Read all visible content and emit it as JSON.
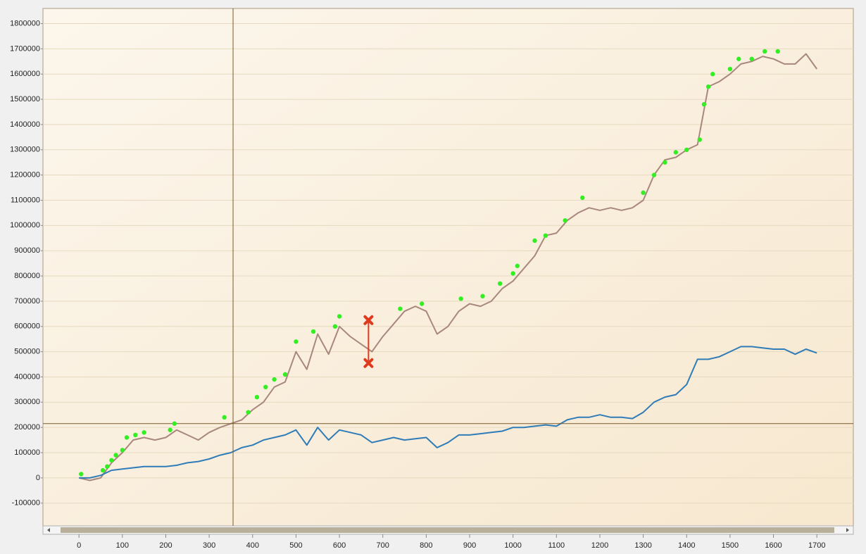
{
  "chart_data": {
    "type": "line",
    "x": [
      0,
      25,
      50,
      75,
      100,
      125,
      150,
      175,
      200,
      225,
      250,
      275,
      300,
      325,
      350,
      375,
      400,
      425,
      450,
      475,
      500,
      525,
      550,
      575,
      600,
      625,
      650,
      675,
      700,
      725,
      750,
      775,
      800,
      825,
      850,
      875,
      900,
      925,
      950,
      975,
      1000,
      1025,
      1050,
      1075,
      1100,
      1125,
      1150,
      1175,
      1200,
      1225,
      1250,
      1275,
      1300,
      1325,
      1350,
      1375,
      1400,
      1425,
      1450,
      1475,
      1500,
      1525,
      1550,
      1575,
      1600,
      1625,
      1650,
      1675,
      1700
    ],
    "series": [
      {
        "color": "#a8877c",
        "values": [
          0,
          -10000,
          0,
          60000,
          100000,
          150000,
          160000,
          150000,
          160000,
          190000,
          170000,
          150000,
          180000,
          200000,
          215000,
          230000,
          270000,
          300000,
          360000,
          380000,
          500000,
          430000,
          570000,
          490000,
          600000,
          560000,
          530000,
          500000,
          560000,
          610000,
          660000,
          680000,
          660000,
          570000,
          600000,
          660000,
          690000,
          680000,
          700000,
          750000,
          780000,
          830000,
          880000,
          960000,
          970000,
          1020000,
          1050000,
          1070000,
          1060000,
          1070000,
          1060000,
          1070000,
          1100000,
          1200000,
          1260000,
          1270000,
          1300000,
          1320000,
          1550000,
          1570000,
          1600000,
          1640000,
          1650000,
          1670000,
          1660000,
          1640000,
          1640000,
          1680000,
          1620000
        ]
      },
      {
        "color": "#2f7cb8",
        "values": [
          0,
          0,
          10000,
          30000,
          35000,
          40000,
          45000,
          45000,
          45000,
          50000,
          60000,
          65000,
          75000,
          90000,
          100000,
          120000,
          130000,
          150000,
          160000,
          170000,
          190000,
          130000,
          200000,
          150000,
          190000,
          180000,
          170000,
          140000,
          150000,
          160000,
          150000,
          155000,
          160000,
          120000,
          140000,
          170000,
          170000,
          175000,
          180000,
          185000,
          200000,
          200000,
          205000,
          210000,
          205000,
          230000,
          240000,
          240000,
          250000,
          240000,
          240000,
          235000,
          260000,
          300000,
          320000,
          330000,
          370000,
          470000,
          470000,
          480000,
          500000,
          520000,
          520000,
          515000,
          510000,
          510000,
          490000,
          510000,
          495000
        ]
      }
    ],
    "markers": {
      "color": "#33ee22",
      "x": [
        5,
        55,
        65,
        75,
        85,
        100,
        110,
        130,
        150,
        210,
        220,
        335,
        390,
        410,
        430,
        450,
        475,
        500,
        540,
        590,
        600,
        740,
        790,
        880,
        930,
        970,
        1000,
        1010,
        1050,
        1075,
        1120,
        1160,
        1300,
        1325,
        1350,
        1375,
        1400,
        1430,
        1440,
        1450,
        1460,
        1500,
        1520,
        1550,
        1580,
        1610
      ],
      "values": [
        15000,
        30000,
        45000,
        70000,
        90000,
        110000,
        160000,
        170000,
        180000,
        190000,
        215000,
        240000,
        260000,
        320000,
        360000,
        390000,
        410000,
        540000,
        580000,
        600000,
        640000,
        670000,
        690000,
        710000,
        720000,
        770000,
        810000,
        840000,
        940000,
        960000,
        1020000,
        1110000,
        1130000,
        1200000,
        1250000,
        1290000,
        1300000,
        1340000,
        1480000,
        1550000,
        1600000,
        1620000,
        1660000,
        1660000,
        1690000,
        1690000
      ]
    },
    "drawdown": {
      "color": "#e03a1e",
      "x": 667,
      "values": [
        625000,
        455000
      ]
    },
    "crosshair": {
      "x": 355,
      "y": 215000,
      "color": "#7a5a2a"
    },
    "xlim": [
      -83,
      1784
    ],
    "ylim": [
      -190000,
      1860000
    ],
    "xticks": [
      0,
      100,
      200,
      300,
      400,
      500,
      600,
      700,
      800,
      900,
      1000,
      1100,
      1200,
      1300,
      1400,
      1500,
      1600,
      1700
    ],
    "yticks": [
      -100000,
      0,
      100000,
      200000,
      300000,
      400000,
      500000,
      600000,
      700000,
      800000,
      900000,
      1000000,
      1100000,
      1200000,
      1300000,
      1400000,
      1500000,
      1600000,
      1700000,
      1800000
    ],
    "grid": true
  }
}
